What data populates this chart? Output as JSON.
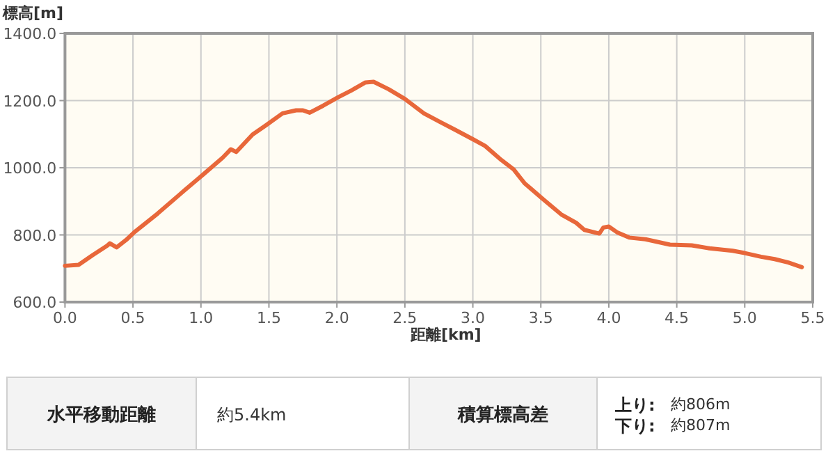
{
  "chart_data": {
    "type": "line",
    "ylabel": "標高[m]",
    "xlabel": "距離[km]",
    "x": [
      0,
      0.1,
      0.2,
      0.31,
      0.33,
      0.38,
      0.45,
      0.51,
      0.68,
      0.88,
      1.02,
      1.16,
      1.22,
      1.26,
      1.38,
      1.48,
      1.6,
      1.7,
      1.75,
      1.8,
      1.9,
      2.01,
      2.11,
      2.21,
      2.27,
      2.38,
      2.5,
      2.64,
      2.77,
      2.87,
      3.0,
      3.09,
      3.21,
      3.3,
      3.38,
      3.52,
      3.65,
      3.76,
      3.82,
      3.93,
      3.96,
      4.0,
      4.06,
      4.15,
      4.27,
      4.45,
      4.61,
      4.74,
      4.91,
      5.0,
      5.12,
      5.22,
      5.32,
      5.42
    ],
    "series": [
      {
        "color": "#e8673a",
        "values": [
          708,
          711,
          739,
          768,
          775,
          763,
          785,
          808,
          863,
          933,
          981,
          1030,
          1055,
          1047,
          1099,
          1127,
          1162,
          1171,
          1171,
          1164,
          1185,
          1210,
          1231,
          1254,
          1256,
          1234,
          1205,
          1162,
          1134,
          1113,
          1085,
          1065,
          1023,
          995,
          954,
          905,
          861,
          836,
          815,
          804,
          822,
          825,
          808,
          792,
          787,
          771,
          769,
          760,
          753,
          746,
          735,
          728,
          718,
          704
        ]
      }
    ],
    "xlim": [
      0,
      5.5
    ],
    "ylim": [
      600,
      1400
    ],
    "xticks": [
      {
        "value": 0,
        "label": "0.0"
      },
      {
        "value": 0.5,
        "label": "0.5"
      },
      {
        "value": 1,
        "label": "1.0"
      },
      {
        "value": 1.5,
        "label": "1.5"
      },
      {
        "value": 2,
        "label": "2.0"
      },
      {
        "value": 2.5,
        "label": "2.5"
      },
      {
        "value": 3,
        "label": "3.0"
      },
      {
        "value": 3.5,
        "label": "3.5"
      },
      {
        "value": 4,
        "label": "4.0"
      },
      {
        "value": 4.5,
        "label": "4.5"
      },
      {
        "value": 5,
        "label": "5.0"
      },
      {
        "value": 5.5,
        "label": "5.5"
      }
    ],
    "yticks": [
      {
        "value": 600,
        "label": "600.0"
      },
      {
        "value": 800,
        "label": "800.0"
      },
      {
        "value": 1000,
        "label": "1000.0"
      },
      {
        "value": 1200,
        "label": "1200.0"
      },
      {
        "value": 1400,
        "label": "1400.0"
      }
    ],
    "grid": true,
    "marker": "none",
    "line_style": "solid",
    "annotations": [
      "水平移動距離",
      "約5.4km",
      "積算標高差",
      "上り:",
      "約806m",
      "下り:",
      "約807m"
    ]
  }
}
